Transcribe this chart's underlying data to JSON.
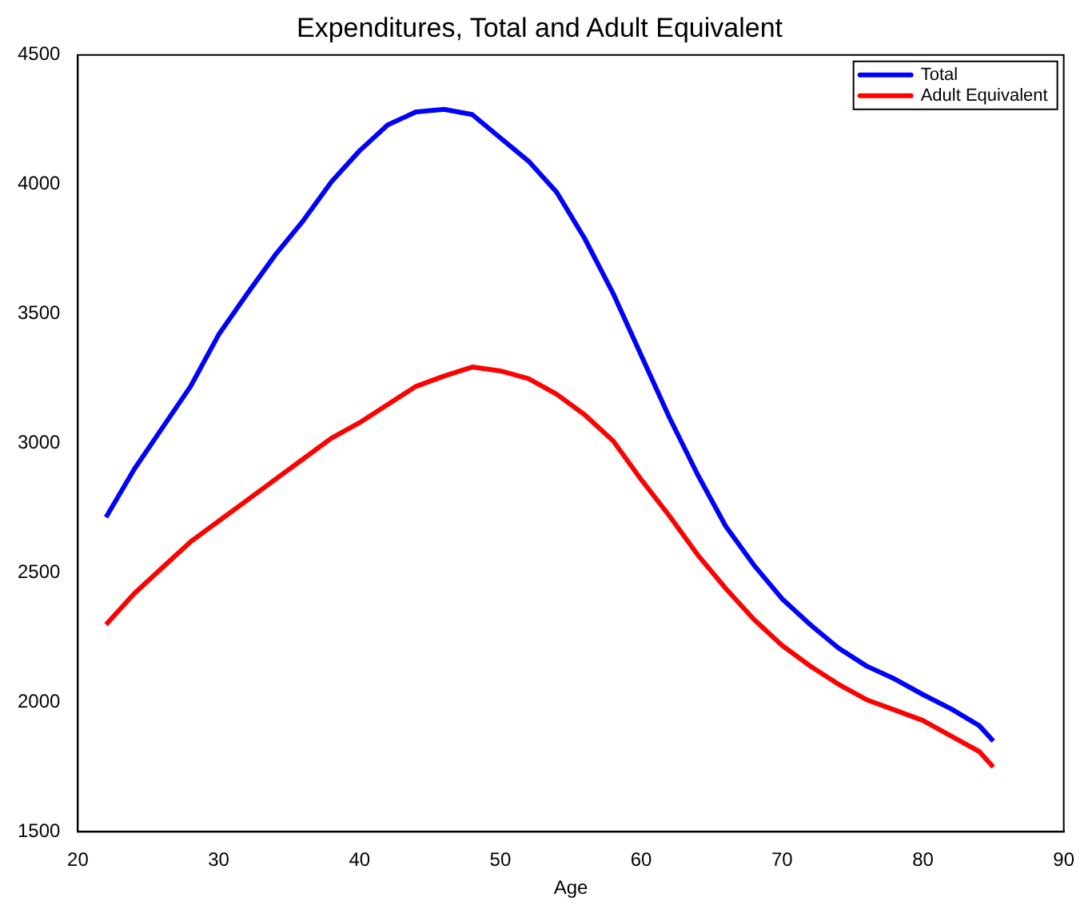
{
  "chart_data": {
    "type": "line",
    "title": "Expenditures, Total and Adult Equivalent",
    "xlabel": "Age",
    "x": [
      22,
      24,
      26,
      28,
      30,
      32,
      34,
      36,
      38,
      40,
      42,
      44,
      46,
      48,
      50,
      52,
      54,
      56,
      58,
      60,
      62,
      64,
      66,
      68,
      70,
      72,
      74,
      76,
      78,
      80,
      82,
      84,
      85
    ],
    "series": [
      {
        "name": "Total",
        "color": "#0000ff",
        "values": [
          2715,
          2900,
          3060,
          3220,
          3420,
          3576,
          3727,
          3860,
          4010,
          4130,
          4230,
          4280,
          4290,
          4270,
          4180,
          4090,
          3970,
          3790,
          3580,
          3340,
          3100,
          2880,
          2680,
          2530,
          2400,
          2300,
          2210,
          2140,
          2090,
          2030,
          1975,
          1910,
          1850
        ]
      },
      {
        "name": "Adult Equivalent",
        "color": "#ff0000",
        "values": [
          2300,
          2420,
          2520,
          2620,
          2700,
          2780,
          2860,
          2940,
          3020,
          3080,
          3150,
          3220,
          3260,
          3295,
          3280,
          3250,
          3190,
          3110,
          3010,
          2860,
          2720,
          2570,
          2440,
          2320,
          2220,
          2140,
          2070,
          2010,
          1970,
          1930,
          1870,
          1810,
          1750
        ]
      }
    ],
    "xlim": [
      20,
      90
    ],
    "xticks": [
      20,
      30,
      40,
      50,
      60,
      70,
      80,
      90
    ],
    "ylim": [
      1500,
      4500
    ],
    "yticks": [
      1500,
      2000,
      2500,
      3000,
      3500,
      4000,
      4500
    ],
    "grid": false,
    "legend": "top right",
    "marker": "none",
    "line_style": "solid"
  }
}
